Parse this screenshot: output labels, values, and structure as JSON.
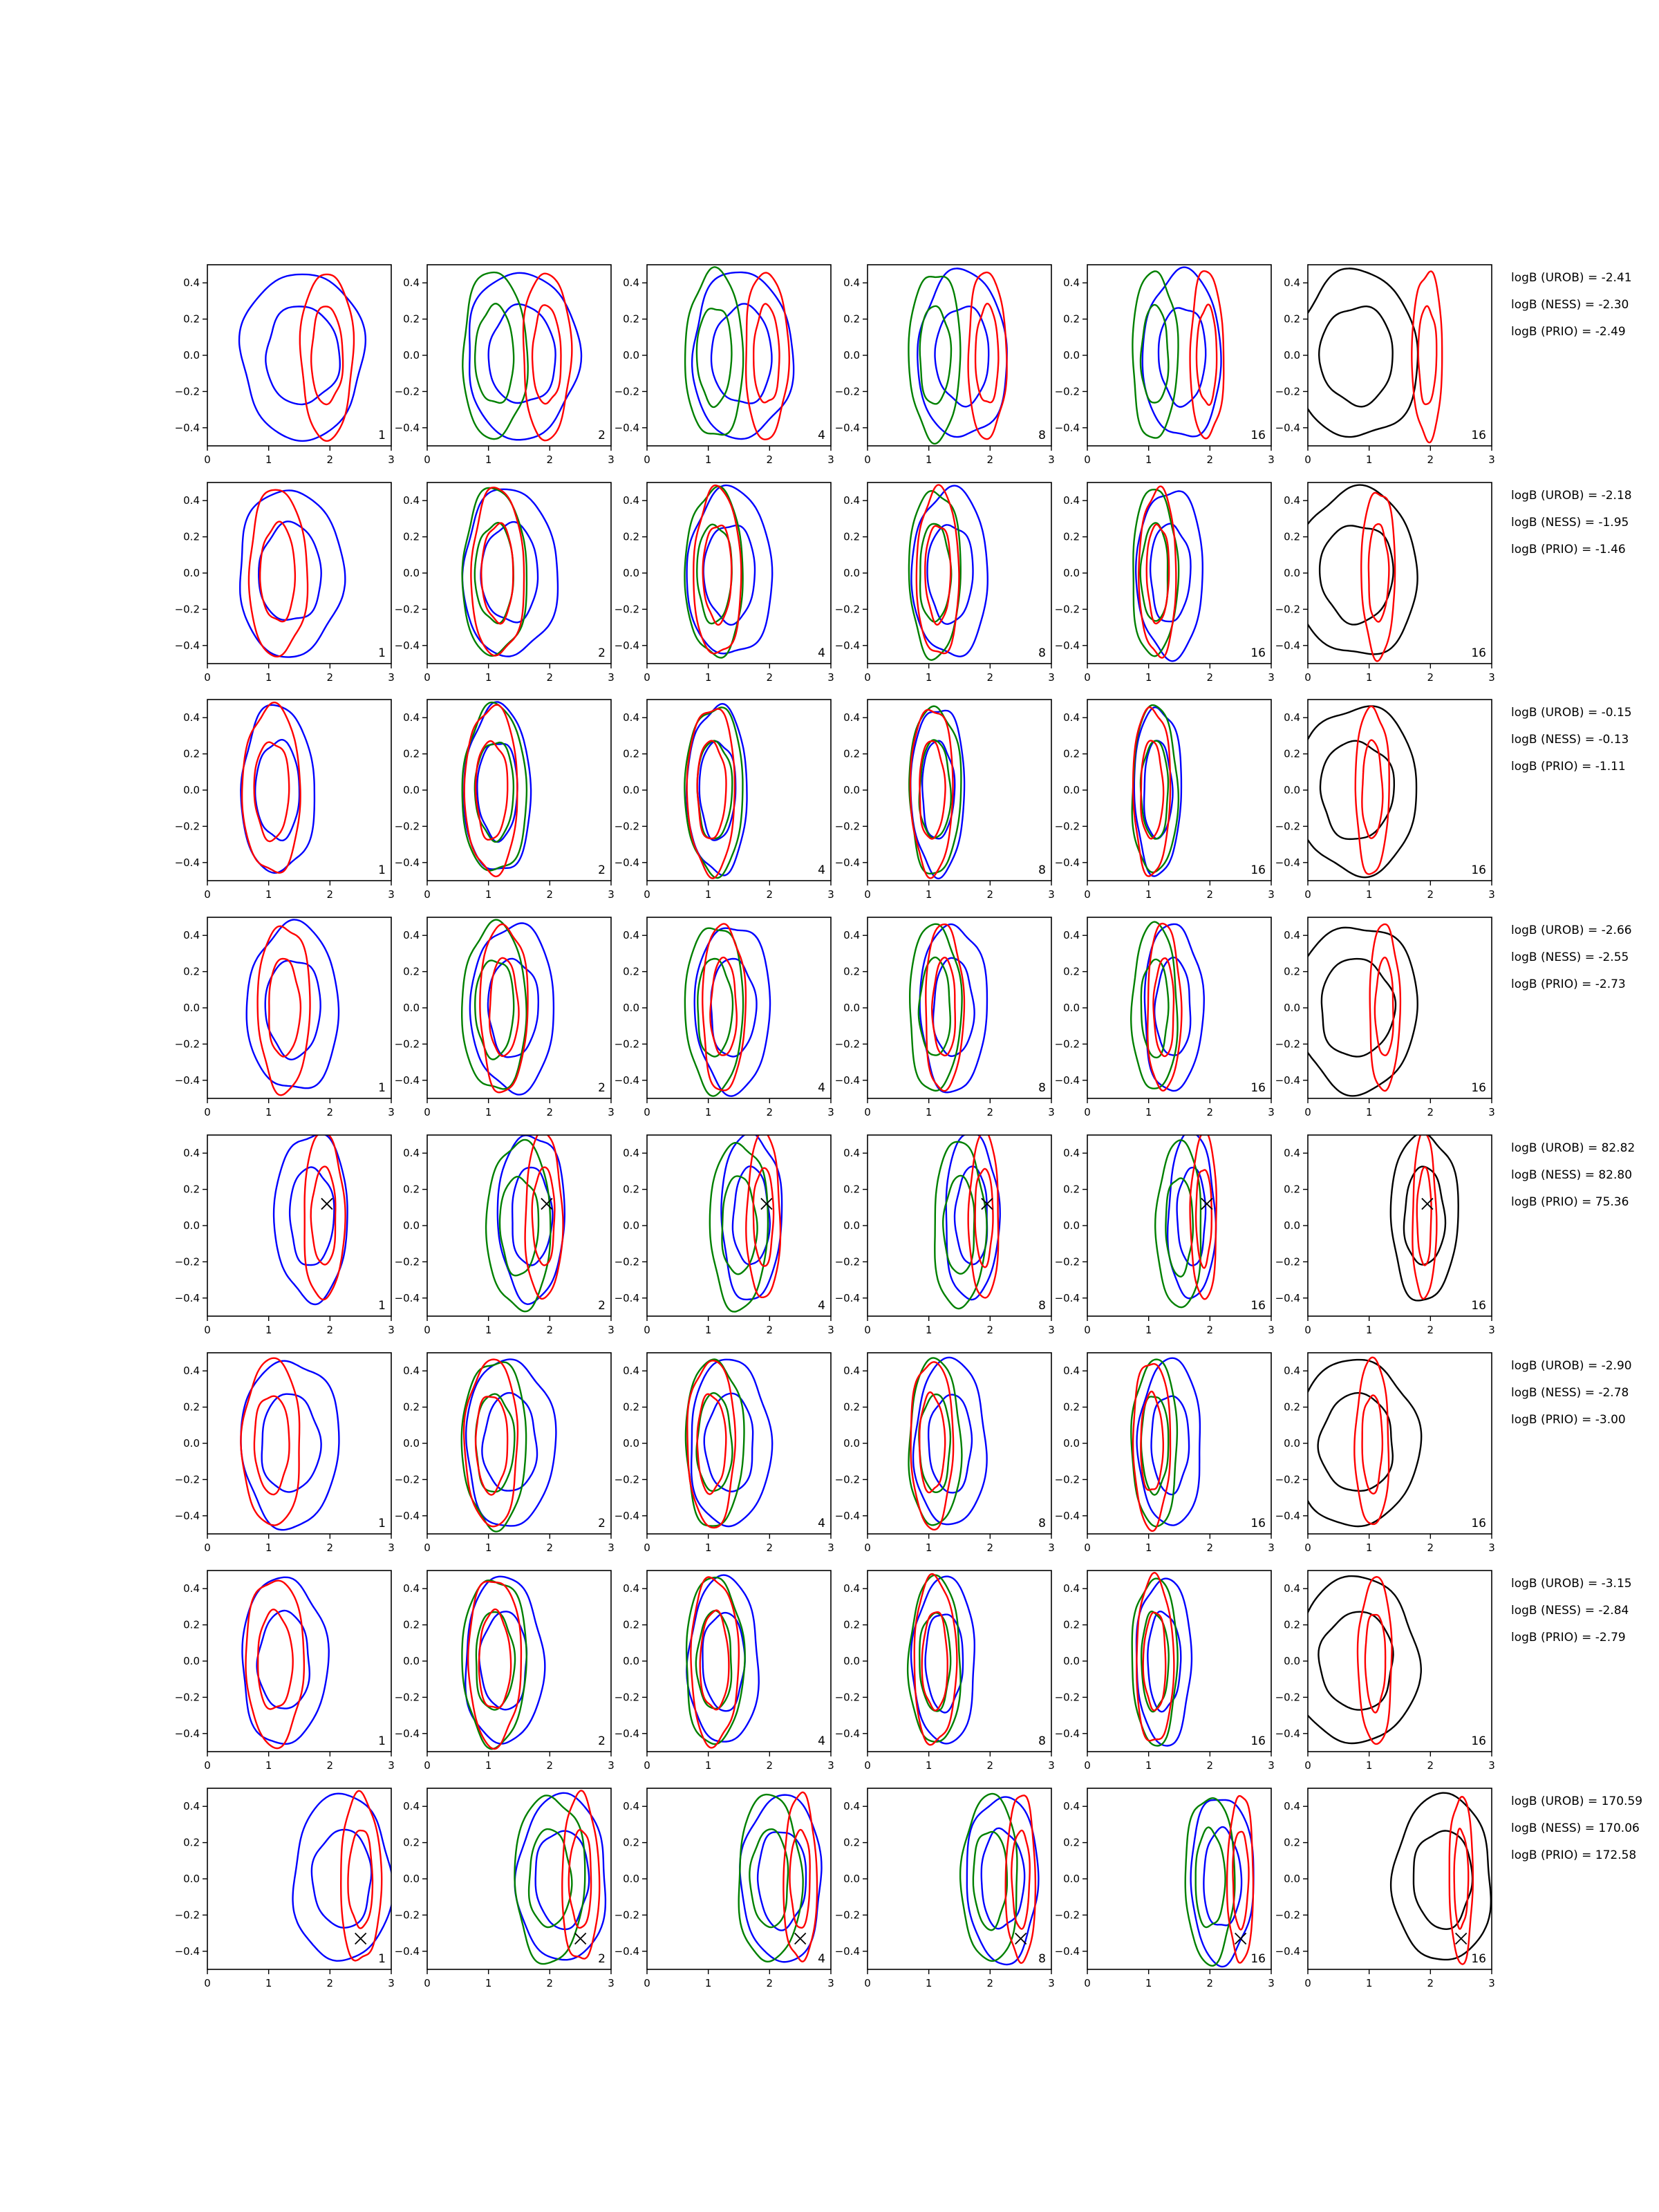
{
  "chart_data": {
    "type": "contour-grid",
    "rows": 8,
    "columns": 6,
    "xlim": [
      0,
      3
    ],
    "ylim": [
      -0.5,
      0.5
    ],
    "xticks": [
      "0",
      "1",
      "2",
      "3"
    ],
    "yticks": [
      "0.4",
      "0.2",
      "0.0",
      "−0.2",
      "−0.4"
    ],
    "column_labels": [
      "1",
      "2",
      "4",
      "8",
      "16",
      "16"
    ],
    "colors": {
      "blue": "#0000ff",
      "red": "#ff0000",
      "green": "#008000",
      "black": "#000000"
    },
    "panels": [
      {
        "logB": [
          "logB (UROB) = -2.41",
          "logB (NESS) = -2.30",
          "logB (PRIO) = -2.49"
        ],
        "marker": null,
        "blue": [
          1.55,
          0.0,
          1.0
        ],
        "red": [
          1.95,
          0.0,
          0.45
        ],
        "green": [
          1.1,
          0.0,
          0.55
        ],
        "black": [
          0.8,
          0.0,
          1.0
        ]
      },
      {
        "logB": [
          "logB (UROB) = -2.18",
          "logB (NESS) = -1.95",
          "logB (PRIO) = -1.46"
        ],
        "marker": null,
        "blue": [
          1.35,
          0.0,
          0.85
        ],
        "red": [
          1.15,
          0.0,
          0.5
        ],
        "green": [
          1.1,
          0.0,
          0.55
        ],
        "black": [
          0.8,
          0.0,
          1.0
        ]
      },
      {
        "logB": [
          "logB (UROB) = -0.15",
          "logB (NESS) = -0.13",
          "logB (PRIO) = -1.11"
        ],
        "marker": null,
        "blue": [
          1.15,
          0.0,
          0.6
        ],
        "red": [
          1.05,
          0.0,
          0.5
        ],
        "green": [
          1.1,
          0.0,
          0.55
        ],
        "black": [
          0.8,
          0.0,
          1.0
        ]
      },
      {
        "logB": [
          "logB (UROB) = -2.66",
          "logB (NESS) = -2.55",
          "logB (PRIO) = -2.73"
        ],
        "marker": null,
        "blue": [
          1.4,
          0.0,
          0.75
        ],
        "red": [
          1.25,
          0.0,
          0.45
        ],
        "green": [
          1.1,
          0.0,
          0.55
        ],
        "black": [
          0.8,
          0.0,
          1.0
        ]
      },
      {
        "logB": [
          "logB (UROB) = 82.82",
          "logB (NESS) = 82.80",
          "logB (PRIO) = 75.36"
        ],
        "marker": [
          1.95,
          0.12
        ],
        "blue": [
          1.7,
          0.05,
          0.6
        ],
        "red": [
          1.9,
          0.05,
          0.35
        ],
        "green": [
          1.5,
          0.0,
          0.55
        ],
        "black": [
          1.9,
          0.05,
          0.55
        ]
      },
      {
        "logB": [
          "logB (UROB) = -2.90",
          "logB (NESS) = -2.78",
          "logB (PRIO) = -3.00"
        ],
        "marker": null,
        "blue": [
          1.35,
          0.0,
          0.8
        ],
        "red": [
          1.05,
          0.0,
          0.5
        ],
        "green": [
          1.1,
          0.0,
          0.55
        ],
        "black": [
          0.8,
          0.0,
          1.0
        ]
      },
      {
        "logB": [
          "logB (UROB) = -3.15",
          "logB (NESS) = -2.84",
          "logB (PRIO) = -2.79"
        ],
        "marker": null,
        "blue": [
          1.25,
          0.0,
          0.7
        ],
        "red": [
          1.1,
          0.0,
          0.5
        ],
        "green": [
          1.1,
          0.0,
          0.55
        ],
        "black": [
          0.8,
          0.0,
          1.0
        ]
      },
      {
        "logB": [
          "logB (UROB) = 170.59",
          "logB (NESS) = 170.06",
          "logB (PRIO) = 172.58"
        ],
        "marker": [
          2.5,
          -0.33
        ],
        "blue": [
          2.2,
          0.0,
          0.8
        ],
        "red": [
          2.5,
          0.0,
          0.35
        ],
        "green": [
          2.0,
          0.0,
          0.6
        ],
        "black": [
          2.2,
          0.0,
          0.8
        ]
      }
    ]
  }
}
